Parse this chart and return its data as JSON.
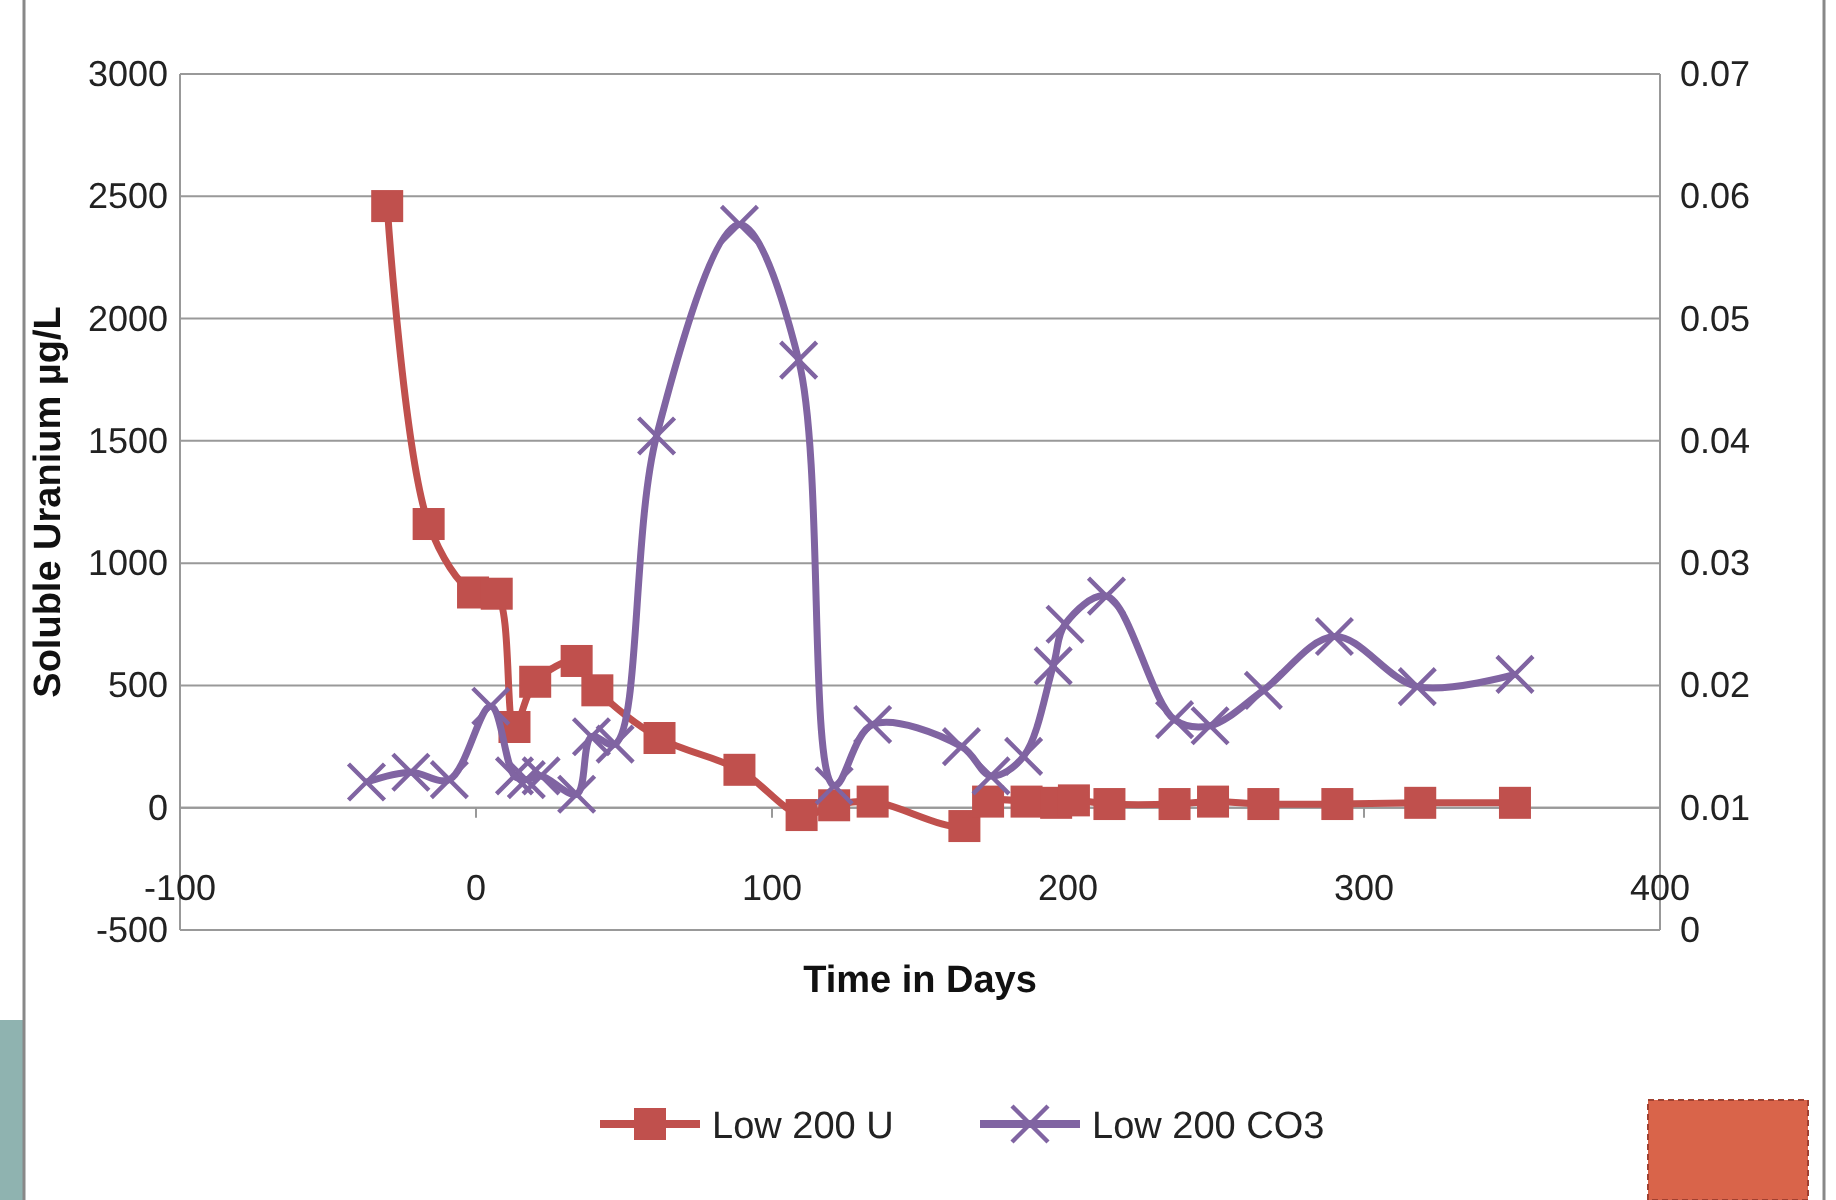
{
  "chart_data": {
    "type": "line",
    "xlabel": "Time in Days",
    "ylabel": "Soluble Uranium µg/L",
    "xlim": [
      -100,
      400
    ],
    "xticks": [
      -100,
      0,
      100,
      200,
      300,
      400
    ],
    "ylim": [
      -500,
      3000
    ],
    "yticks": [
      -500,
      0,
      500,
      1000,
      1500,
      2000,
      2500,
      3000
    ],
    "y2lim": [
      0,
      0.07
    ],
    "y2ticks": [
      0,
      0.01,
      0.02,
      0.03,
      0.04,
      0.05,
      0.06,
      0.07
    ],
    "grid": "y",
    "legend": "bottom",
    "series": [
      {
        "name": "Low 200 U",
        "color": "#c0504d",
        "marker": "square",
        "x": [
          -30,
          -16,
          -1,
          7,
          13,
          20,
          34,
          41,
          62,
          89,
          110,
          121,
          134,
          165,
          173,
          186,
          196,
          202,
          214,
          236,
          249,
          266,
          291,
          319,
          351
        ],
        "values": [
          2460,
          1160,
          880,
          875,
          330,
          515,
          600,
          480,
          285,
          155,
          -30,
          10,
          25,
          -75,
          25,
          25,
          20,
          30,
          15,
          15,
          25,
          15,
          15,
          20,
          20
        ]
      },
      {
        "name": "Low 200 CO3",
        "color": "#8064a2",
        "marker": "cross",
        "axis": "y2",
        "x": [
          -37,
          -22,
          -9,
          5,
          13,
          17,
          22,
          34,
          39,
          47,
          61,
          89,
          109,
          121,
          134,
          164,
          174,
          185,
          195,
          199,
          213,
          236,
          248,
          266,
          290,
          318,
          351
        ],
        "values": [
          0.0121,
          0.0129,
          0.0123,
          0.0183,
          0.0126,
          0.0123,
          0.0126,
          0.0111,
          0.0158,
          0.0152,
          0.0404,
          0.0577,
          0.0466,
          0.0118,
          0.0168,
          0.015,
          0.0126,
          0.0142,
          0.0216,
          0.025,
          0.0273,
          0.0172,
          0.0167,
          0.0196,
          0.024,
          0.0199,
          0.0209
        ]
      }
    ]
  }
}
